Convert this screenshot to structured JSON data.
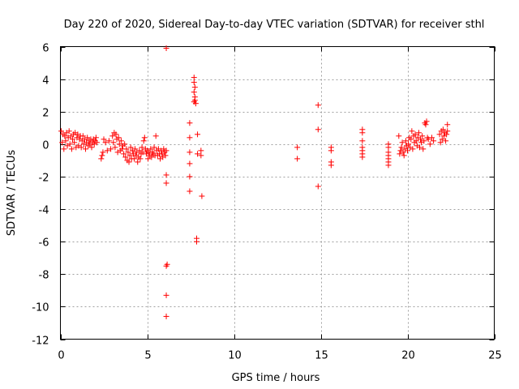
{
  "chart_data": {
    "type": "scatter",
    "title": "Day 220 of 2020, Sidereal Day-to-day VTEC variation (SDTVAR) for receiver sthl",
    "xlabel": "GPS time / hours",
    "ylabel": "SDTVAR / TECUs",
    "xlim": [
      0,
      25
    ],
    "ylim": [
      -12,
      6
    ],
    "xticks": [
      0,
      5,
      10,
      15,
      20,
      25
    ],
    "yticks": [
      -12,
      -10,
      -8,
      -6,
      -4,
      -2,
      0,
      2,
      4,
      6
    ],
    "xtick_labels": [
      "0",
      "5",
      "10",
      "15",
      "20",
      "25"
    ],
    "ytick_labels": [
      "-12",
      "-10",
      "-8",
      "-6",
      "-4",
      "-2",
      "0",
      "2",
      "4",
      "6"
    ],
    "grid": true,
    "marker": "+",
    "color": "#ff0000",
    "series": [
      {
        "name": "SDTVAR",
        "points": [
          [
            0.05,
            0.8
          ],
          [
            0.1,
            0.1
          ],
          [
            0.15,
            0.6
          ],
          [
            0.2,
            -0.3
          ],
          [
            0.25,
            0.5
          ],
          [
            0.3,
            0.2
          ],
          [
            0.35,
            0.7
          ],
          [
            0.4,
            -0.1
          ],
          [
            0.45,
            0.4
          ],
          [
            0.5,
            0.8
          ],
          [
            0.55,
            0.0
          ],
          [
            0.6,
            0.5
          ],
          [
            0.65,
            -0.3
          ],
          [
            0.7,
            0.3
          ],
          [
            0.75,
            0.6
          ],
          [
            0.8,
            0.1
          ],
          [
            0.85,
            0.7
          ],
          [
            0.9,
            -0.2
          ],
          [
            0.95,
            0.4
          ],
          [
            1.0,
            0.6
          ],
          [
            1.05,
            -0.1
          ],
          [
            1.1,
            0.3
          ],
          [
            1.15,
            0.5
          ],
          [
            1.2,
            -0.2
          ],
          [
            1.25,
            0.2
          ],
          [
            1.3,
            0.5
          ],
          [
            1.35,
            0.0
          ],
          [
            1.4,
            0.3
          ],
          [
            1.45,
            -0.3
          ],
          [
            1.5,
            0.1
          ],
          [
            1.55,
            0.4
          ],
          [
            1.6,
            -0.1
          ],
          [
            1.65,
            0.2
          ],
          [
            1.7,
            0.0
          ],
          [
            1.75,
            0.3
          ],
          [
            1.8,
            -0.2
          ],
          [
            1.85,
            0.1
          ],
          [
            1.9,
            0.3
          ],
          [
            1.95,
            0.0
          ],
          [
            2.0,
            0.2
          ],
          [
            2.05,
            0.4
          ],
          [
            2.1,
            0.1
          ],
          [
            2.35,
            -0.9
          ],
          [
            2.4,
            -0.7
          ],
          [
            2.45,
            -0.5
          ],
          [
            2.5,
            0.3
          ],
          [
            2.6,
            0.1
          ],
          [
            2.7,
            -0.4
          ],
          [
            2.8,
            0.2
          ],
          [
            2.9,
            -0.3
          ],
          [
            3.0,
            0.5
          ],
          [
            3.05,
            0.1
          ],
          [
            3.1,
            0.7
          ],
          [
            3.15,
            -0.2
          ],
          [
            3.2,
            0.6
          ],
          [
            3.25,
            0.3
          ],
          [
            3.3,
            -0.5
          ],
          [
            3.35,
            0.4
          ],
          [
            3.4,
            0.0
          ],
          [
            3.45,
            -0.4
          ],
          [
            3.5,
            0.2
          ],
          [
            3.55,
            -0.3
          ],
          [
            3.6,
            -0.1
          ],
          [
            3.65,
            -0.6
          ],
          [
            3.7,
            0.0
          ],
          [
            3.75,
            -0.8
          ],
          [
            3.8,
            -0.3
          ],
          [
            3.85,
            -1.0
          ],
          [
            3.9,
            -0.5
          ],
          [
            3.95,
            -1.1
          ],
          [
            4.0,
            -0.7
          ],
          [
            4.05,
            -0.2
          ],
          [
            4.1,
            -0.9
          ],
          [
            4.15,
            -0.4
          ],
          [
            4.2,
            -0.6
          ],
          [
            4.25,
            -0.9
          ],
          [
            4.3,
            -0.3
          ],
          [
            4.35,
            -0.7
          ],
          [
            4.4,
            -0.5
          ],
          [
            4.45,
            -1.1
          ],
          [
            4.5,
            -0.8
          ],
          [
            4.55,
            -0.4
          ],
          [
            4.6,
            -0.9
          ],
          [
            4.65,
            -0.6
          ],
          [
            4.7,
            -0.2
          ],
          [
            4.75,
            -0.5
          ],
          [
            4.8,
            0.2
          ],
          [
            4.85,
            0.4
          ],
          [
            4.9,
            -0.3
          ],
          [
            4.95,
            -0.6
          ],
          [
            5.0,
            -0.4
          ],
          [
            5.05,
            -0.9
          ],
          [
            5.1,
            -0.5
          ],
          [
            5.15,
            -0.7
          ],
          [
            5.2,
            -0.3
          ],
          [
            5.25,
            -0.8
          ],
          [
            5.3,
            -0.5
          ],
          [
            5.35,
            -0.6
          ],
          [
            5.4,
            -0.2
          ],
          [
            5.45,
            -0.7
          ],
          [
            5.5,
            0.5
          ],
          [
            5.55,
            -0.4
          ],
          [
            5.6,
            -0.7
          ],
          [
            5.65,
            -0.3
          ],
          [
            5.7,
            -0.6
          ],
          [
            5.75,
            -0.9
          ],
          [
            5.8,
            -0.4
          ],
          [
            5.85,
            -0.6
          ],
          [
            5.9,
            -0.8
          ],
          [
            5.95,
            -0.3
          ],
          [
            6.0,
            -0.5
          ],
          [
            6.05,
            -0.7
          ],
          [
            6.1,
            -0.4
          ],
          [
            6.1,
            5.9
          ],
          [
            6.1,
            -1.9
          ],
          [
            6.1,
            -2.4
          ],
          [
            6.15,
            -7.4
          ],
          [
            6.1,
            -7.5
          ],
          [
            6.1,
            -9.3
          ],
          [
            6.1,
            -10.6
          ],
          [
            7.45,
            1.3
          ],
          [
            7.45,
            0.4
          ],
          [
            7.45,
            -0.5
          ],
          [
            7.45,
            -1.2
          ],
          [
            7.45,
            -2.0
          ],
          [
            7.45,
            -2.9
          ],
          [
            7.7,
            4.1
          ],
          [
            7.7,
            3.8
          ],
          [
            7.75,
            3.5
          ],
          [
            7.7,
            3.2
          ],
          [
            7.75,
            2.9
          ],
          [
            7.7,
            2.6
          ],
          [
            7.8,
            2.5
          ],
          [
            7.75,
            2.7
          ],
          [
            7.9,
            0.6
          ],
          [
            7.9,
            -0.6
          ],
          [
            7.85,
            -5.8
          ],
          [
            7.85,
            -6.0
          ],
          [
            8.1,
            -0.4
          ],
          [
            8.1,
            -0.7
          ],
          [
            8.15,
            -3.2
          ],
          [
            13.65,
            -0.2
          ],
          [
            13.65,
            -0.9
          ],
          [
            14.85,
            2.4
          ],
          [
            14.85,
            0.9
          ],
          [
            14.85,
            -2.6
          ],
          [
            15.6,
            -0.2
          ],
          [
            15.6,
            -0.4
          ],
          [
            15.6,
            -1.1
          ],
          [
            15.6,
            -1.3
          ],
          [
            17.4,
            0.9
          ],
          [
            17.4,
            0.7
          ],
          [
            17.4,
            0.2
          ],
          [
            17.4,
            -0.2
          ],
          [
            17.4,
            -0.4
          ],
          [
            17.4,
            -0.6
          ],
          [
            17.4,
            -0.8
          ],
          [
            18.9,
            0.0
          ],
          [
            18.9,
            -0.2
          ],
          [
            18.9,
            -0.5
          ],
          [
            18.9,
            -0.7
          ],
          [
            18.9,
            -0.9
          ],
          [
            18.9,
            -1.1
          ],
          [
            18.9,
            -1.3
          ],
          [
            19.5,
            0.5
          ],
          [
            19.55,
            -0.6
          ],
          [
            19.6,
            -0.4
          ],
          [
            19.65,
            -0.2
          ],
          [
            19.7,
            0.1
          ],
          [
            19.75,
            -0.5
          ],
          [
            19.8,
            -0.7
          ],
          [
            19.85,
            -0.3
          ],
          [
            19.9,
            0.2
          ],
          [
            19.95,
            -0.1
          ],
          [
            20.0,
            -0.4
          ],
          [
            20.05,
            0.0
          ],
          [
            20.1,
            0.4
          ],
          [
            20.15,
            -0.2
          ],
          [
            20.2,
            0.3
          ],
          [
            20.25,
            0.8
          ],
          [
            20.3,
            -0.3
          ],
          [
            20.35,
            0.5
          ],
          [
            20.4,
            0.1
          ],
          [
            20.45,
            0.6
          ],
          [
            20.5,
            0.2
          ],
          [
            20.55,
            -0.1
          ],
          [
            20.6,
            0.4
          ],
          [
            20.65,
            0.7
          ],
          [
            20.7,
            -0.2
          ],
          [
            20.75,
            0.3
          ],
          [
            20.8,
            0.1
          ],
          [
            20.85,
            0.5
          ],
          [
            20.9,
            -0.3
          ],
          [
            20.95,
            0.2
          ],
          [
            21.0,
            1.3
          ],
          [
            21.05,
            1.2
          ],
          [
            21.1,
            1.4
          ],
          [
            21.15,
            0.4
          ],
          [
            21.2,
            0.3
          ],
          [
            21.3,
            0.0
          ],
          [
            21.4,
            0.4
          ],
          [
            21.5,
            0.2
          ],
          [
            21.85,
            0.6
          ],
          [
            21.9,
            0.1
          ],
          [
            21.95,
            0.8
          ],
          [
            22.0,
            0.3
          ],
          [
            22.05,
            0.9
          ],
          [
            22.1,
            0.5
          ],
          [
            22.15,
            0.7
          ],
          [
            22.2,
            0.2
          ],
          [
            22.25,
            0.6
          ],
          [
            22.3,
            1.2
          ],
          [
            22.3,
            0.8
          ]
        ]
      }
    ]
  }
}
